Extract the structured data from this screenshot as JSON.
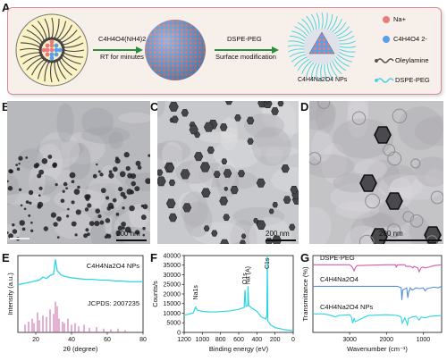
{
  "panels": {
    "A": "A",
    "B": "B",
    "C": "C",
    "D": "D",
    "E": "E",
    "F": "F",
    "G": "G"
  },
  "schematic": {
    "step1_top": "C4H4O4(NH4)2",
    "step1_bottom": "RT for minutes",
    "step2_top": "DSPE-PEG",
    "step2_bottom": "Surface modification",
    "product": "C4H4Na2O4 NPs",
    "legend": [
      {
        "label": "Na+",
        "color": "#ec7b7b"
      },
      {
        "label": "C4H4O4 2-",
        "color": "#5aa0e6"
      },
      {
        "label": "Oleylamine",
        "color": "#555555"
      },
      {
        "label": "DSPE-PEG",
        "color": "#4fd3e3"
      }
    ],
    "colors": {
      "frame_bg": "#f7efe9",
      "frame_border": "#d98a9a",
      "arrow": "#2d8c3c"
    }
  },
  "tem": {
    "B_scale": "200 nm",
    "C_scale": "200 nm",
    "D_scale": "200 nm"
  },
  "chart_data": [
    {
      "panel": "E",
      "type": "line",
      "xlabel": "2θ (degree)",
      "ylabel": "Intensity (a.u.)",
      "xlim": [
        10,
        80
      ],
      "xticks": [
        20,
        40,
        60,
        80
      ],
      "annotations": [
        "C4H4Na2O4 NPs",
        "JCPDS: 2007235"
      ],
      "series": [
        {
          "name": "C4H4Na2O4 NPs",
          "color": "#2fd6e0",
          "x": [
            10,
            14,
            18,
            22,
            24,
            26,
            28,
            30,
            31,
            32,
            33,
            34,
            36,
            38,
            40,
            44,
            48,
            52,
            56,
            60,
            64,
            68,
            72,
            76,
            80
          ],
          "y": [
            0.62,
            0.64,
            0.66,
            0.68,
            0.72,
            0.7,
            0.74,
            0.76,
            0.95,
            0.8,
            0.78,
            0.75,
            0.73,
            0.72,
            0.71,
            0.7,
            0.69,
            0.69,
            0.68,
            0.68,
            0.67,
            0.67,
            0.66,
            0.66,
            0.66
          ]
        }
      ],
      "reference": {
        "color": "#c7509a",
        "peaks": [
          [
            14,
            0.1
          ],
          [
            16,
            0.14
          ],
          [
            18,
            0.18
          ],
          [
            19,
            0.12
          ],
          [
            21,
            0.26
          ],
          [
            22,
            0.16
          ],
          [
            24,
            0.22
          ],
          [
            26,
            0.2
          ],
          [
            28,
            0.3
          ],
          [
            30,
            0.24
          ],
          [
            31,
            0.4
          ],
          [
            32,
            0.34
          ],
          [
            33,
            0.18
          ],
          [
            35,
            0.14
          ],
          [
            36,
            0.12
          ],
          [
            38,
            0.18
          ],
          [
            40,
            0.1
          ],
          [
            42,
            0.12
          ],
          [
            44,
            0.08
          ],
          [
            47,
            0.1
          ],
          [
            50,
            0.06
          ],
          [
            54,
            0.07
          ],
          [
            58,
            0.05
          ],
          [
            62,
            0.04
          ],
          [
            66,
            0.05
          ],
          [
            70,
            0.03
          ]
        ]
      }
    },
    {
      "panel": "F",
      "type": "line",
      "xlabel": "Binding energy (eV)",
      "ylabel": "Counts/s",
      "xlim": [
        1200,
        0
      ],
      "ylim": [
        0,
        40000
      ],
      "xticks": [
        1200,
        1000,
        800,
        600,
        400,
        200,
        0
      ],
      "yticks": [
        0,
        5000,
        10000,
        15000,
        20000,
        25000,
        30000,
        35000,
        40000
      ],
      "peak_labels": [
        "Na1s",
        "O1s",
        "Na (A)",
        "C1s"
      ],
      "series": [
        {
          "name": "XPS",
          "color": "#2fd6e0",
          "x": [
            1200,
            1150,
            1100,
            1072,
            1071,
            1050,
            1000,
            950,
            900,
            800,
            700,
            600,
            540,
            531,
            520,
            500,
            497,
            490,
            450,
            400,
            350,
            300,
            290,
            285,
            280,
            250,
            200,
            100,
            0
          ],
          "y": [
            9000,
            9500,
            10200,
            13500,
            12500,
            11500,
            11000,
            10800,
            10600,
            10800,
            11200,
            12000,
            13000,
            22000,
            13500,
            14000,
            24000,
            14000,
            12500,
            11000,
            8000,
            7000,
            9000,
            42000,
            6000,
            4000,
            2500,
            1500,
            800
          ]
        }
      ]
    },
    {
      "panel": "G",
      "type": "line",
      "xlabel": "Wavenumber (cm⁻¹)",
      "ylabel": "Transmittance (%)",
      "xlim": [
        4000,
        500
      ],
      "xticks": [
        3000,
        2000,
        1000
      ],
      "series": [
        {
          "name": "DSPE-PEG",
          "color": "#d65ab0",
          "x": [
            4000,
            3000,
            2950,
            2920,
            2880,
            2850,
            2800,
            2000,
            1750,
            1735,
            1700,
            1500,
            1470,
            1350,
            1280,
            1250,
            1150,
            1110,
            1060,
            1000,
            960,
            840,
            700,
            500
          ],
          "y": [
            0.88,
            0.88,
            0.86,
            0.84,
            0.8,
            0.84,
            0.87,
            0.88,
            0.88,
            0.85,
            0.88,
            0.88,
            0.86,
            0.86,
            0.84,
            0.86,
            0.84,
            0.79,
            0.84,
            0.85,
            0.84,
            0.85,
            0.87,
            0.88
          ]
        },
        {
          "name": "C4H4Na2O4",
          "color": "#5590d8",
          "x": [
            4000,
            3500,
            3000,
            2500,
            2000,
            1800,
            1700,
            1600,
            1580,
            1560,
            1450,
            1420,
            1400,
            1350,
            1300,
            1200,
            1100,
            1000,
            950,
            900,
            800,
            700,
            600,
            500
          ],
          "y": [
            0.6,
            0.6,
            0.6,
            0.6,
            0.6,
            0.6,
            0.6,
            0.58,
            0.42,
            0.55,
            0.58,
            0.45,
            0.52,
            0.58,
            0.55,
            0.58,
            0.57,
            0.58,
            0.54,
            0.57,
            0.58,
            0.59,
            0.58,
            0.6
          ]
        },
        {
          "name": "C4H4Na2O4 NPs",
          "color": "#2fd6e0",
          "x": [
            4000,
            3700,
            3500,
            3400,
            3300,
            3000,
            2950,
            2920,
            2880,
            2850,
            2500,
            2000,
            1700,
            1600,
            1570,
            1500,
            1430,
            1400,
            1300,
            1200,
            1110,
            1050,
            950,
            800,
            500
          ],
          "y": [
            0.24,
            0.24,
            0.22,
            0.2,
            0.22,
            0.23,
            0.2,
            0.12,
            0.18,
            0.14,
            0.22,
            0.23,
            0.22,
            0.2,
            0.12,
            0.19,
            0.1,
            0.18,
            0.2,
            0.21,
            0.16,
            0.2,
            0.19,
            0.21,
            0.22
          ]
        }
      ]
    }
  ]
}
